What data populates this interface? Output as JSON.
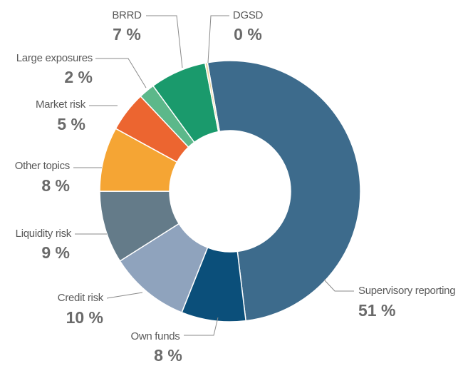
{
  "chart_data": {
    "type": "donut",
    "categories": [
      "Supervisory reporting",
      "Own funds",
      "Credit risk",
      "Liquidity risk",
      "Other topics",
      "Market risk",
      "Large exposures",
      "BRRD",
      "DGSD"
    ],
    "values": [
      51,
      8,
      10,
      9,
      8,
      5,
      2,
      7,
      0.3
    ],
    "value_labels": [
      "51 %",
      "8 %",
      "10 %",
      "9 %",
      "8 %",
      "5 %",
      "2 %",
      "7 %",
      "0 %"
    ],
    "colors": [
      "#3d6b8c",
      "#0b4f7a",
      "#8fa3bd",
      "#647b89",
      "#f5a534",
      "#ec6530",
      "#5cb88a",
      "#1a9a6c",
      "#e9d7a0"
    ]
  }
}
